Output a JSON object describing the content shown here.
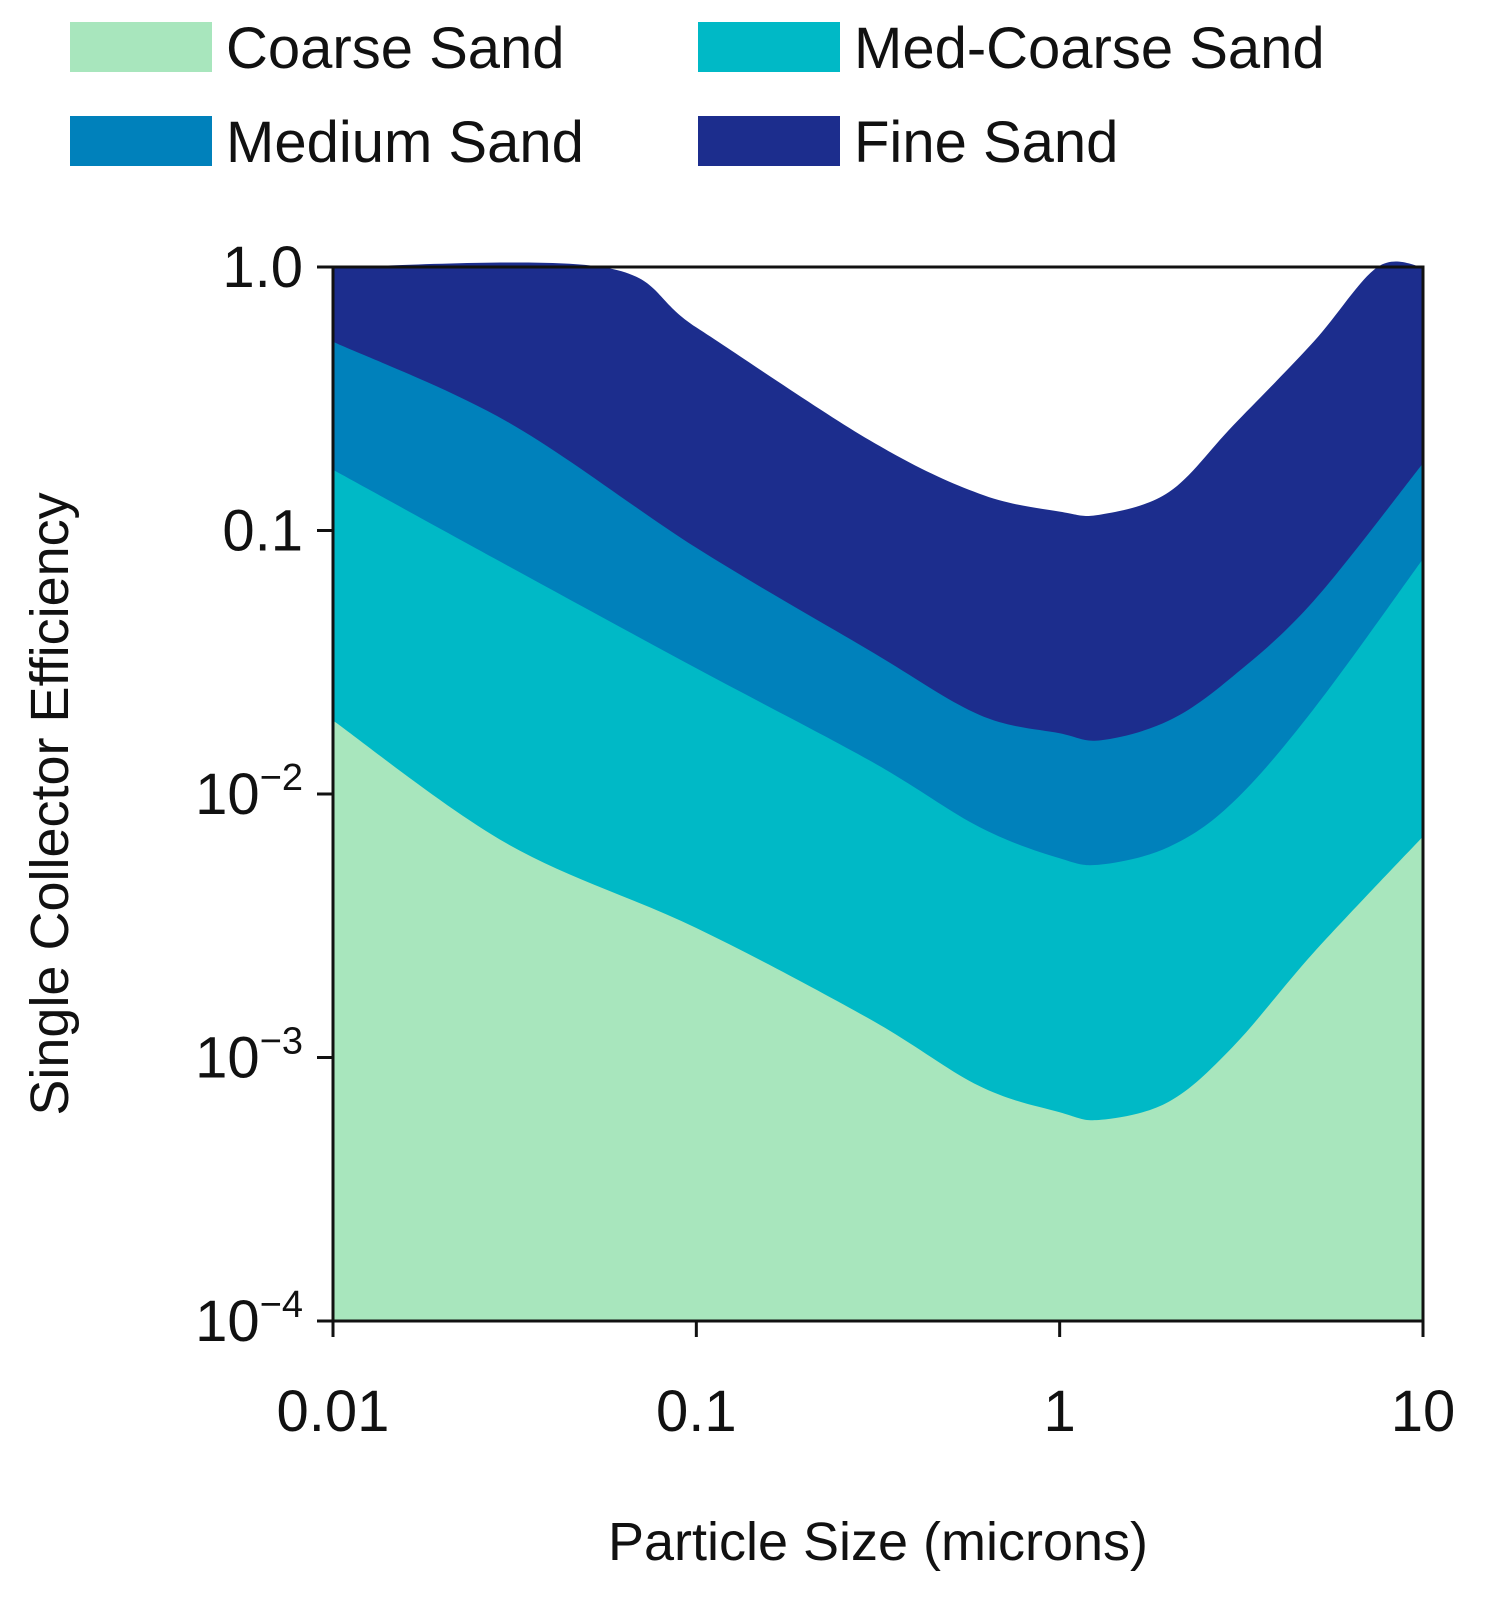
{
  "chart_data": {
    "type": "area",
    "title": "",
    "xlabel": "Particle Size (microns)",
    "ylabel": "Single Collector Efficiency",
    "xscale": "log",
    "yscale": "log",
    "xlim": [
      0.01,
      10
    ],
    "ylim": [
      0.0001,
      1.0
    ],
    "grid": false,
    "legend_position": "top",
    "x_ticks": [
      {
        "value": 0.01,
        "label": "0.01"
      },
      {
        "value": 0.1,
        "label": "0.1"
      },
      {
        "value": 1,
        "label": "1"
      },
      {
        "value": 10,
        "label": "10"
      }
    ],
    "y_ticks": [
      {
        "value": 1.0,
        "base": "1.0",
        "exp": ""
      },
      {
        "value": 0.1,
        "base": "0.1",
        "exp": ""
      },
      {
        "value": 0.01,
        "base": "10",
        "exp": "−2"
      },
      {
        "value": 0.001,
        "base": "10",
        "exp": "−3"
      },
      {
        "value": 0.0001,
        "base": "10",
        "exp": "−4"
      }
    ],
    "series": [
      {
        "name": "Coarse Sand",
        "color": "#a8e6bd",
        "points": [
          [
            0.01,
            0.019
          ],
          [
            0.03,
            0.0065
          ],
          [
            0.1,
            0.0031
          ],
          [
            0.3,
            0.0014
          ],
          [
            0.6,
            0.00078
          ],
          [
            1.0,
            0.00062
          ],
          [
            1.3,
            0.00058
          ],
          [
            2.0,
            0.00068
          ],
          [
            3.0,
            0.0011
          ],
          [
            5.0,
            0.0025
          ],
          [
            10,
            0.0069
          ]
        ]
      },
      {
        "name": "Med-Coarse Sand",
        "color": "#00b9c6",
        "points": [
          [
            0.01,
            0.17
          ],
          [
            0.03,
            0.074
          ],
          [
            0.1,
            0.03
          ],
          [
            0.3,
            0.0134
          ],
          [
            0.6,
            0.0075
          ],
          [
            1.0,
            0.0057
          ],
          [
            1.3,
            0.0054
          ],
          [
            2.0,
            0.0063
          ],
          [
            3.0,
            0.0093
          ],
          [
            5.0,
            0.021
          ],
          [
            10,
            0.078
          ]
        ]
      },
      {
        "name": "Medium Sand",
        "color": "#0081bb",
        "points": [
          [
            0.01,
            0.52
          ],
          [
            0.03,
            0.26
          ],
          [
            0.1,
            0.086
          ],
          [
            0.3,
            0.035
          ],
          [
            0.6,
            0.02
          ],
          [
            1.0,
            0.017
          ],
          [
            1.3,
            0.016
          ],
          [
            2.0,
            0.019
          ],
          [
            3.0,
            0.028
          ],
          [
            5.0,
            0.054
          ],
          [
            10,
            0.18
          ]
        ]
      },
      {
        "name": "Fine Sand",
        "color": "#1c2d8d",
        "points": [
          [
            0.01,
            1.0
          ],
          [
            0.055,
            1.0
          ],
          [
            0.1,
            0.59
          ],
          [
            0.3,
            0.22
          ],
          [
            0.6,
            0.138
          ],
          [
            1.0,
            0.118
          ],
          [
            1.3,
            0.115
          ],
          [
            2.0,
            0.14
          ],
          [
            3.0,
            0.25
          ],
          [
            5.0,
            0.52
          ],
          [
            7.5,
            1.0
          ],
          [
            10,
            1.0
          ]
        ]
      }
    ]
  }
}
